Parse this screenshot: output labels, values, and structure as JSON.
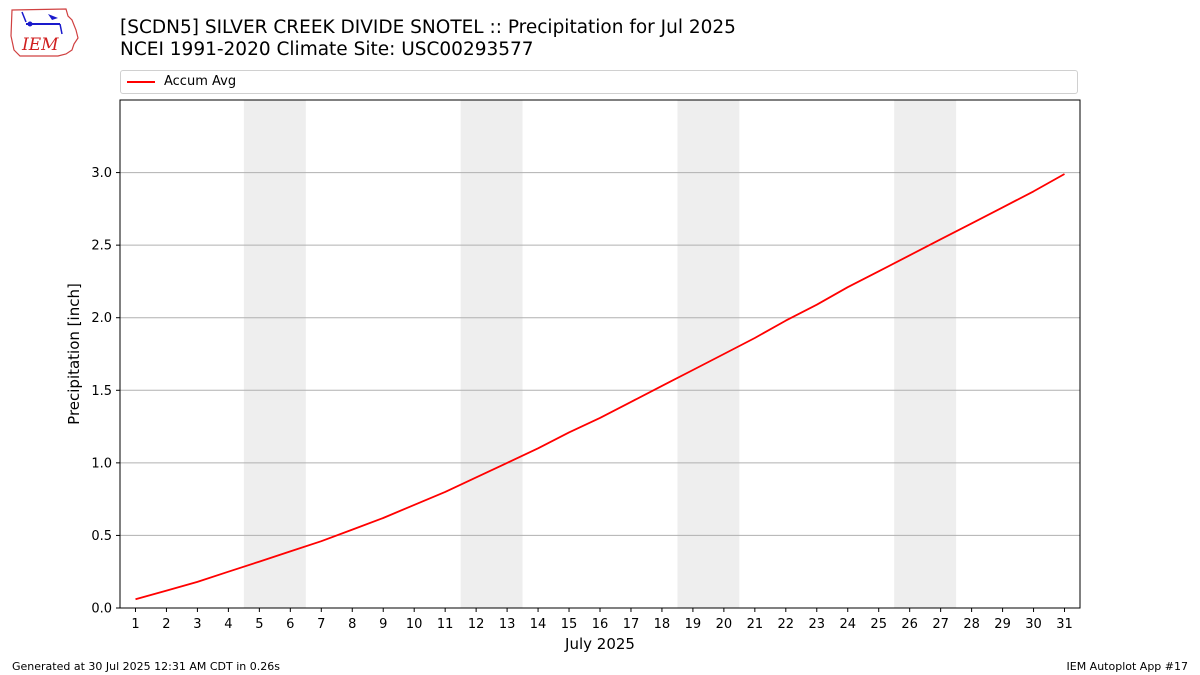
{
  "header": {
    "title_line1": "[SCDN5] SILVER CREEK DIVIDE SNOTEL :: Precipitation for Jul 2025",
    "title_line2": "NCEI 1991-2020 Climate Site: USC00293577",
    "logo_text": "IEM"
  },
  "footer": {
    "generated": "Generated at 30 Jul 2025 12:31 AM CDT in 0.26s",
    "app": "IEM Autoplot App #17"
  },
  "chart_data": {
    "type": "line",
    "xlabel": "July 2025",
    "ylabel": "Precipitation [inch]",
    "xlim": [
      0.5,
      31.5
    ],
    "ylim": [
      0,
      3.5
    ],
    "x_ticks": [
      1,
      2,
      3,
      4,
      5,
      6,
      7,
      8,
      9,
      10,
      11,
      12,
      13,
      14,
      15,
      16,
      17,
      18,
      19,
      20,
      21,
      22,
      23,
      24,
      25,
      26,
      27,
      28,
      29,
      30,
      31
    ],
    "y_ticks": [
      0.0,
      0.5,
      1.0,
      1.5,
      2.0,
      2.5,
      3.0
    ],
    "y_tick_labels": [
      "0.0",
      "0.5",
      "1.0",
      "1.5",
      "2.0",
      "2.5",
      "3.0"
    ],
    "grid": "horizontal",
    "legend_position": "top",
    "weekend_shading": [
      [
        4.5,
        6.5
      ],
      [
        11.5,
        13.5
      ],
      [
        18.5,
        20.5
      ],
      [
        25.5,
        27.5
      ]
    ],
    "shade_color": "#eeeeee",
    "series": [
      {
        "name": "Accum Avg",
        "color": "#ff0000",
        "x": [
          1,
          2,
          3,
          4,
          5,
          6,
          7,
          8,
          9,
          10,
          11,
          12,
          13,
          14,
          15,
          16,
          17,
          18,
          19,
          20,
          21,
          22,
          23,
          24,
          25,
          26,
          27,
          28,
          29,
          30,
          31
        ],
        "y": [
          0.06,
          0.12,
          0.18,
          0.25,
          0.32,
          0.39,
          0.46,
          0.54,
          0.62,
          0.71,
          0.8,
          0.9,
          1.0,
          1.1,
          1.21,
          1.31,
          1.42,
          1.53,
          1.64,
          1.75,
          1.86,
          1.98,
          2.09,
          2.21,
          2.32,
          2.43,
          2.54,
          2.65,
          2.76,
          2.87,
          2.99
        ]
      }
    ]
  }
}
